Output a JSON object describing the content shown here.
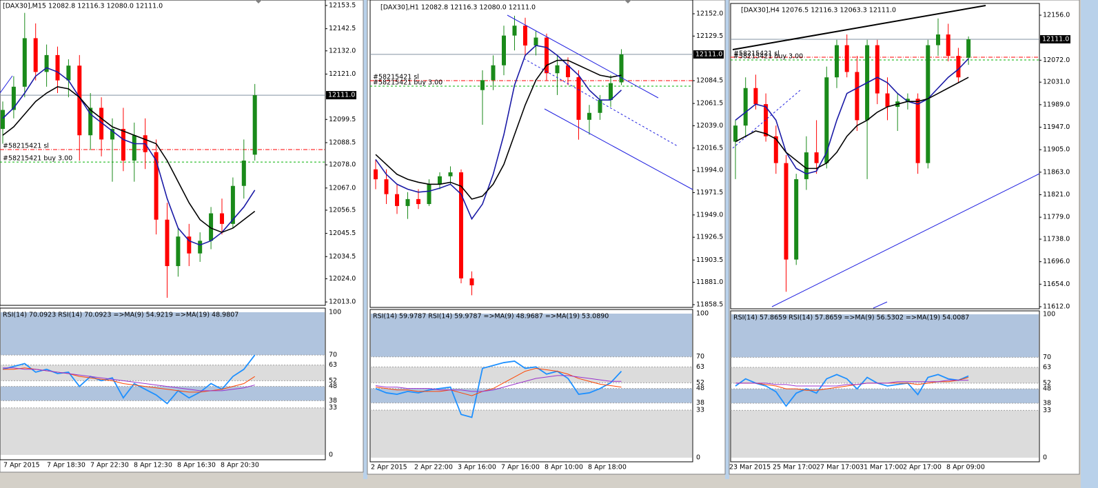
{
  "windows": [
    {
      "header": "[DAX30],M15  12082.8 12116.3 12080.0 12111.0",
      "ylim": [
        12011.4,
        12156.1
      ],
      "yticks": [
        12153.5,
        12142.5,
        {
          "value": 12132.0,
          "label": "12132.0"
        },
        {
          "value": 12121.0,
          "label": "12121.0"
        },
        12099.5,
        12088.5,
        {
          "value": 12078.0,
          "label": "12078.0"
        },
        {
          "value": 12067.0,
          "label": "12067.0"
        },
        12056.5,
        12045.5,
        12034.5,
        {
          "value": 12024.0,
          "label": "12024.0"
        },
        {
          "value": 12013.0,
          "label": "12013.0"
        }
      ],
      "price_tag": {
        "value": 12111.0,
        "label": "12111.0"
      },
      "orders": [
        {
          "label": "#58215421 sl",
          "level": 12085.2
        },
        {
          "label": "#58215421 buy 3.00",
          "level": 12079.3
        }
      ],
      "candles": {
        "open": [
          12095,
          12104,
          12115,
          12138,
          12122,
          12130,
          12118,
          12125,
          12092,
          12105,
          12090,
          12095,
          12080,
          12092,
          12084,
          12052,
          12030,
          12044,
          12036,
          12042,
          12055,
          12050,
          12068,
          12082.8
        ],
        "high": [
          12108,
          12120,
          12150,
          12145,
          12135,
          12134,
          12128,
          12130,
          12112,
          12110,
          12100,
          12105,
          12098,
          12100,
          12090,
          12060,
          12048,
          12050,
          12046,
          12058,
          12062,
          12072,
          12090,
          12116.3
        ],
        "low": [
          12088,
          12100,
          12110,
          12118,
          12115,
          12112,
          12110,
          12080,
          12085,
          12082,
          12070,
          12075,
          12070,
          12076,
          12045,
          12015,
          12025,
          12030,
          12032,
          12038,
          12045,
          12048,
          12062,
          12080.0
        ],
        "close": [
          12104,
          12115,
          12138,
          12122,
          12130,
          12118,
          12125,
          12092,
          12105,
          12090,
          12095,
          12080,
          12092,
          12084,
          12052,
          12030,
          12044,
          12036,
          12042,
          12055,
          12050,
          12068,
          12080,
          12111.0
        ]
      },
      "ma": [
        {
          "color": "#1a1aa6",
          "values": [
            12100,
            12105,
            12112,
            12120,
            12124,
            12122,
            12118,
            12110,
            12102,
            12098,
            12094,
            12090,
            12088,
            12088,
            12080,
            12062,
            12048,
            12042,
            12040,
            12042,
            12046,
            12052,
            12058,
            12066
          ]
        },
        {
          "color": "#000000",
          "values": [
            12092,
            12096,
            12102,
            12108,
            12112,
            12115,
            12114,
            12110,
            12104,
            12100,
            12096,
            12094,
            12092,
            12090,
            12088,
            12080,
            12070,
            12060,
            12052,
            12048,
            12046,
            12048,
            12052,
            12056
          ]
        }
      ],
      "time_labels": [
        "7 Apr 2015",
        "7 Apr 18:30",
        "7 Apr 22:30",
        "8 Apr 12:30",
        "8 Apr 16:30",
        "8 Apr 20:30"
      ],
      "rsi": {
        "header": "RSI(14) 70.0923  RSI(14) 70.0923  =>MA(9) 54.9219  =>MA(19) 48.9807",
        "ylim": [
          0,
          100
        ],
        "yticks": [
          100,
          70,
          63,
          52,
          48,
          38,
          33,
          0
        ],
        "series": [
          {
            "color": "#1e90ff",
            "values": [
              60,
              62,
              64,
              58,
              60,
              57,
              58,
              48,
              55,
              52,
              54,
              40,
              50,
              46,
              42,
              36,
              45,
              40,
              44,
              50,
              46,
              55,
              60,
              70
            ]
          },
          {
            "color": "#ff4500",
            "values": [
              60,
              60,
              61,
              60,
              59,
              58,
              57,
              55,
              54,
              53,
              52,
              50,
              49,
              48,
              47,
              46,
              45,
              44,
              44,
              45,
              46,
              48,
              50,
              55
            ]
          },
          {
            "color": "#9932cc",
            "values": [
              61,
              61,
              60,
              60,
              59,
              58,
              57,
              56,
              55,
              54,
              53,
              52,
              51,
              50,
              49,
              48,
              47,
              46,
              45,
              45,
              45,
              46,
              47,
              49
            ]
          }
        ]
      }
    },
    {
      "header": "[DAX30],H1  12082.8 12116.3 12080.0 12111.0",
      "ylim": [
        11855.7,
        12165.9
      ],
      "yticks": [
        {
          "value": 12152.0,
          "label": "12152.0"
        },
        12129.5,
        12084.5,
        12061.5,
        {
          "value": 12039.0,
          "label": "12039.0"
        },
        12016.5,
        {
          "value": 11994.0,
          "label": "11994.0"
        },
        11971.5,
        {
          "value": 11949.0,
          "label": "11949.0"
        },
        11926.5,
        11903.5,
        {
          "value": 11881.0,
          "label": "11881.0"
        },
        11858.5
      ],
      "price_tag": {
        "value": 12111.0,
        "label": "12111.0"
      },
      "orders": [
        {
          "label": "#58215421 sl",
          "level": 12084.5
        },
        {
          "label": "#58215421 buy 3.00",
          "level": 12079.0
        }
      ],
      "candles": {
        "open": [
          11995,
          11985,
          11970,
          11958,
          11965,
          11960,
          11980,
          11988,
          11992,
          11885,
          12075,
          12085,
          12100,
          12130,
          12140,
          12120,
          12128,
          12092,
          12100,
          12088,
          12045,
          12052,
          12065,
          12082.8
        ],
        "high": [
          12005,
          11995,
          11980,
          11972,
          11975,
          11985,
          11992,
          11998,
          11995,
          11892,
          12095,
          12110,
          12140,
          12150,
          12148,
          12135,
          12132,
          12110,
          12108,
          12095,
          12060,
          12070,
          12090,
          12116.3
        ],
        "low": [
          11975,
          11960,
          11950,
          11945,
          11955,
          11958,
          11975,
          11980,
          11880,
          11868,
          12040,
          12075,
          12090,
          12115,
          12110,
          12110,
          12085,
          12070,
          12080,
          12025,
          12030,
          12045,
          12058,
          12080.0
        ],
        "close": [
          11985,
          11970,
          11958,
          11965,
          11960,
          11980,
          11988,
          11992,
          11885,
          11878,
          12085,
          12100,
          12130,
          12140,
          12120,
          12128,
          12092,
          12100,
          12088,
          12045,
          12052,
          12065,
          12082,
          12111.0
        ]
      },
      "ma": [
        {
          "color": "#1a1aa6",
          "values": [
            12005,
            11990,
            11980,
            11975,
            11972,
            11973,
            11976,
            11980,
            11970,
            11945,
            11960,
            11990,
            12030,
            12080,
            12110,
            12120,
            12118,
            12110,
            12100,
            12090,
            12075,
            12065,
            12065,
            12075
          ]
        },
        {
          "color": "#000000",
          "values": [
            12010,
            12000,
            11990,
            11985,
            11982,
            11980,
            11980,
            11982,
            11978,
            11965,
            11968,
            11980,
            12000,
            12030,
            12060,
            12085,
            12100,
            12105,
            12105,
            12100,
            12095,
            12090,
            12088,
            12090
          ]
        }
      ],
      "time_labels": [
        "2 Apr 2015",
        "2 Apr 22:00",
        "3 Apr 16:00",
        "7 Apr 16:00",
        "8 Apr 10:00",
        "8 Apr 18:00"
      ],
      "rsi": {
        "header": "RSI(14) 59.9787  RSI(14) 59.9787  =>MA(9) 48.9687  =>MA(19) 53.0890",
        "ylim": [
          0,
          100
        ],
        "yticks": [
          100,
          70,
          63,
          52,
          48,
          38,
          33,
          0
        ],
        "series": [
          {
            "color": "#1e90ff",
            "values": [
              48,
              45,
              44,
              46,
              45,
              47,
              48,
              49,
              30,
              28,
              62,
              64,
              66,
              67,
              62,
              63,
              58,
              60,
              55,
              44,
              45,
              48,
              52,
              60
            ]
          },
          {
            "color": "#ff4500",
            "values": [
              49,
              48,
              47,
              47,
              46,
              46,
              46,
              47,
              45,
              43,
              46,
              48,
              52,
              56,
              60,
              62,
              61,
              60,
              58,
              55,
              53,
              51,
              50,
              49
            ]
          },
          {
            "color": "#9932cc",
            "values": [
              50,
              49,
              49,
              48,
              48,
              48,
              47,
              47,
              47,
              46,
              46,
              47,
              49,
              51,
              53,
              55,
              56,
              57,
              57,
              56,
              55,
              54,
              53,
              53
            ]
          }
        ]
      }
    },
    {
      "header": "[DAX30],H4  12076.5 12116.3 12063.3 12111.0",
      "ylim": [
        11608.1,
        12177.9
      ],
      "yticks": [
        {
          "value": 12156.0,
          "label": "12156.0"
        },
        {
          "value": 12072.0,
          "label": "12072.0"
        },
        {
          "value": 12031.0,
          "label": "12031.0"
        },
        {
          "value": 11989.0,
          "label": "11989.0"
        },
        {
          "value": 11947.0,
          "label": "11947.0"
        },
        {
          "value": 11905.0,
          "label": "11905.0"
        },
        {
          "value": 11863.0,
          "label": "11863.0"
        },
        {
          "value": 11821.0,
          "label": "11821.0"
        },
        {
          "value": 11779.0,
          "label": "11779.0"
        },
        {
          "value": 11738.0,
          "label": "11738.0"
        },
        {
          "value": 11696.0,
          "label": "11696.0"
        },
        {
          "value": 11654.0,
          "label": "11654.0"
        },
        {
          "value": 11612.0,
          "label": "11612.0"
        }
      ],
      "price_tag": {
        "value": 12111.0,
        "label": "12111.0"
      },
      "orders": [
        {
          "label": "#58215421 sl",
          "level": 12077.6
        },
        {
          "label": "#58215421 buy 3.00",
          "level": 12072.4
        }
      ],
      "candles": {
        "open": [
          11920,
          11950,
          12020,
          11990,
          11930,
          11880,
          11700,
          11850,
          11900,
          11880,
          12040,
          12100,
          12050,
          11960,
          12100,
          12010,
          11985,
          11995,
          12000,
          11880,
          12100,
          12120,
          12080,
          12076.5
        ],
        "high": [
          11960,
          12040,
          12045,
          12010,
          11950,
          11895,
          11860,
          11930,
          11960,
          12060,
          12110,
          12120,
          12080,
          12110,
          12110,
          12040,
          12010,
          12010,
          12010,
          12110,
          12150,
          12140,
          12095,
          12116.3
        ],
        "low": [
          11850,
          11930,
          11980,
          11920,
          11860,
          11640,
          11690,
          11830,
          11860,
          11870,
          12020,
          12040,
          11940,
          11850,
          11990,
          11960,
          11940,
          11980,
          11860,
          11870,
          12080,
          12070,
          12030,
          12063.3
        ],
        "close": [
          11950,
          12020,
          11990,
          11930,
          11880,
          11700,
          11850,
          11900,
          11880,
          12040,
          12100,
          12050,
          11960,
          12100,
          12010,
          11985,
          11995,
          12000,
          11880,
          12100,
          12120,
          12080,
          12040,
          12111.0
        ]
      },
      "ma": [
        {
          "color": "#1a1aa6",
          "values": [
            11960,
            11975,
            11990,
            11985,
            11960,
            11900,
            11870,
            11860,
            11865,
            11900,
            11960,
            12010,
            12020,
            12030,
            12040,
            12030,
            12010,
            11995,
            11990,
            12000,
            12020,
            12040,
            12055,
            12075
          ]
        },
        {
          "color": "#000000",
          "values": [
            11920,
            11930,
            11940,
            11935,
            11925,
            11900,
            11885,
            11870,
            11870,
            11880,
            11900,
            11930,
            11950,
            11960,
            11975,
            11985,
            11990,
            11995,
            11995,
            12000,
            12010,
            12020,
            12030,
            12040
          ]
        }
      ],
      "time_labels": [
        "23 Mar 2015",
        "25 Mar 17:00",
        "27 Mar 17:00",
        "31 Mar 17:00",
        "2 Apr 17:00",
        "8 Apr 09:00"
      ],
      "rsi": {
        "header": "RSI(14) 57.8659  RSI(14) 57.8659  =>MA(9) 56.5302  =>MA(19) 54.0087",
        "ylim": [
          0,
          100
        ],
        "yticks": [
          100,
          70,
          63,
          52,
          48,
          38,
          33,
          0
        ],
        "series": [
          {
            "color": "#1e90ff",
            "values": [
              50,
              55,
              52,
              50,
              46,
              36,
              45,
              48,
              45,
              55,
              58,
              55,
              48,
              56,
              52,
              50,
              51,
              52,
              44,
              56,
              58,
              55,
              54,
              57
            ]
          },
          {
            "color": "#ff4500",
            "values": [
              52,
              52,
              52,
              51,
              50,
              48,
              48,
              47,
              47,
              48,
              49,
              50,
              51,
              52,
              52,
              52,
              52,
              52,
              51,
              52,
              53,
              53,
              54,
              56
            ]
          },
          {
            "color": "#9932cc",
            "values": [
              52,
              52,
              52,
              52,
              51,
              51,
              50,
              50,
              50,
              50,
              50,
              51,
              51,
              52,
              52,
              52,
              53,
              53,
              53,
              53,
              53,
              54,
              54,
              54
            ]
          }
        ]
      }
    }
  ]
}
